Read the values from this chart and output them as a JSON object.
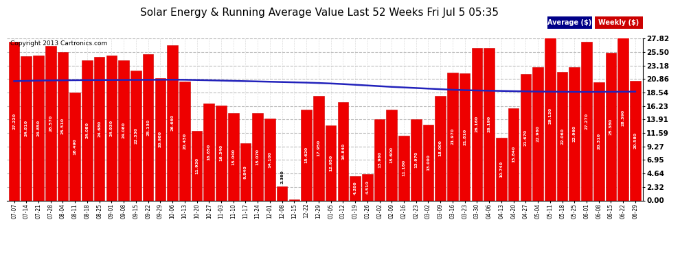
{
  "title": "Solar Energy & Running Average Value Last 52 Weeks Fri Jul 5 05:35",
  "copyright": "Copyright 2013 Cartronics.com",
  "bar_color": "#ee0000",
  "avg_line_color": "#2222bb",
  "background_color": "#ffffff",
  "grid_color": "#bbbbbb",
  "ylim_max": 27.82,
  "yticks": [
    0.0,
    2.32,
    4.64,
    6.95,
    9.27,
    11.59,
    13.91,
    16.23,
    18.54,
    20.86,
    23.18,
    25.5,
    27.82
  ],
  "categories": [
    "07-07",
    "07-14",
    "07-21",
    "07-28",
    "08-04",
    "08-11",
    "08-18",
    "08-25",
    "09-01",
    "09-08",
    "09-15",
    "09-22",
    "09-29",
    "10-06",
    "10-13",
    "10-20",
    "10-27",
    "11-03",
    "11-10",
    "11-17",
    "11-24",
    "12-01",
    "12-08",
    "12-15",
    "12-22",
    "12-29",
    "01-05",
    "01-12",
    "01-19",
    "01-26",
    "02-02",
    "02-09",
    "02-16",
    "02-23",
    "03-02",
    "03-09",
    "03-16",
    "03-23",
    "03-30",
    "04-06",
    "04-13",
    "04-20",
    "04-27",
    "05-04",
    "05-11",
    "05-18",
    "05-25",
    "06-01",
    "06-08",
    "06-15",
    "06-22",
    "06-29"
  ],
  "weekly_values": [
    27.22,
    24.81,
    24.85,
    26.57,
    25.51,
    18.49,
    24.08,
    24.68,
    24.93,
    24.08,
    22.33,
    25.13,
    20.98,
    26.66,
    20.43,
    11.93,
    16.65,
    16.34,
    15.04,
    9.84,
    15.07,
    14.1,
    2.39,
    0.15,
    15.62,
    17.95,
    12.95,
    16.84,
    4.2,
    4.51,
    13.96,
    15.6,
    11.16,
    13.97,
    13.0,
    18.0,
    21.97,
    21.81,
    26.16,
    26.19,
    10.74,
    15.84,
    21.67,
    22.96,
    29.12,
    22.06,
    22.96,
    27.27,
    20.31,
    25.38,
    28.39,
    20.58
  ],
  "avg_values": [
    20.5,
    20.55,
    20.6,
    20.63,
    20.65,
    20.67,
    20.68,
    20.69,
    20.7,
    20.71,
    20.72,
    20.73,
    20.74,
    20.75,
    20.74,
    20.7,
    20.65,
    20.6,
    20.55,
    20.5,
    20.45,
    20.4,
    20.35,
    20.3,
    20.25,
    20.18,
    20.1,
    20.0,
    19.88,
    19.76,
    19.64,
    19.52,
    19.42,
    19.32,
    19.22,
    19.12,
    19.02,
    18.95,
    18.9,
    18.86,
    18.82,
    18.78,
    18.74,
    18.71,
    18.69,
    18.67,
    18.66,
    18.65,
    18.66,
    18.67,
    18.68,
    18.7
  ],
  "label_fontsize": 4.5,
  "tick_fontsize": 7.5,
  "title_fontsize": 11,
  "copyright_fontsize": 6.5,
  "xtick_fontsize": 5.5
}
